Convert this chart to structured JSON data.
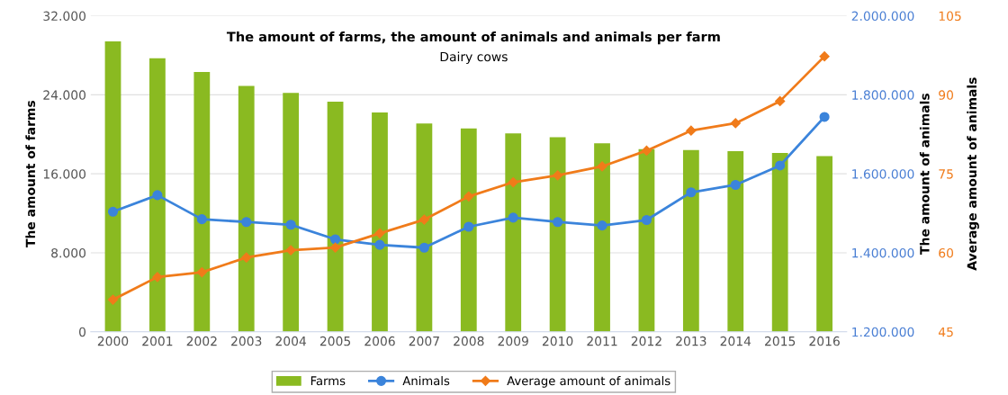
{
  "chart_data": {
    "type": "bar",
    "title": "The amount of farms, the amount of animals and animals per farm",
    "subtitle": "Dairy cows",
    "ylabel": "The amount of farms",
    "y2label": "The amount of animals",
    "y3label": "Average amount of animals",
    "categories": [
      "2000",
      "2001",
      "2002",
      "2003",
      "2004",
      "2005",
      "2006",
      "2007",
      "2008",
      "2009",
      "2010",
      "2011",
      "2012",
      "2013",
      "2014",
      "2015",
      "2016"
    ],
    "series": [
      {
        "name": "Farms",
        "color": "#8aba21",
        "values": [
          29400,
          27700,
          26300,
          24900,
          24200,
          23300,
          22200,
          21100,
          20600,
          20100,
          19700,
          19100,
          18500,
          18400,
          18300,
          18100,
          17800
        ]
      },
      {
        "name": "Animals",
        "type": "line",
        "axis": "y2",
        "color": "#3b84db",
        "marker": "circle",
        "values": [
          1504000,
          1546000,
          1485000,
          1478000,
          1471000,
          1434000,
          1420000,
          1413000,
          1466000,
          1489000,
          1478000,
          1469000,
          1483000,
          1553000,
          1572000,
          1621000,
          1744000
        ]
      },
      {
        "name": "Average amount of animals",
        "type": "line",
        "axis": "y3",
        "color": "#f07b1a",
        "marker": "diamond",
        "values": [
          51.1,
          55.4,
          56.3,
          59.1,
          60.5,
          61.0,
          63.7,
          66.3,
          70.7,
          73.4,
          74.7,
          76.4,
          79.4,
          83.2,
          84.6,
          88.8,
          97.3
        ]
      }
    ],
    "ylim": [
      0,
      32000
    ],
    "yticks": [
      0,
      {
        "value": 8000,
        "label": "8.000"
      },
      {
        "value": 16000,
        "label": "16.000"
      },
      {
        "value": 24000,
        "label": "24.000"
      },
      {
        "value": 32000,
        "label": "32.000"
      }
    ],
    "y2lim": [
      1200000,
      2000000
    ],
    "y2ticks": [
      {
        "value": 1200000,
        "label": "1.200.000"
      },
      {
        "value": 1400000,
        "label": "1.400.000"
      },
      {
        "value": 1600000,
        "label": "1.600.000"
      },
      {
        "value": 1800000,
        "label": "1.800.000"
      },
      {
        "value": 2000000,
        "label": "2.000.000"
      }
    ],
    "y3lim": [
      45,
      105
    ],
    "y3ticks": [
      45,
      60,
      75,
      90,
      105
    ],
    "grid": "y",
    "legend": "bottom"
  }
}
